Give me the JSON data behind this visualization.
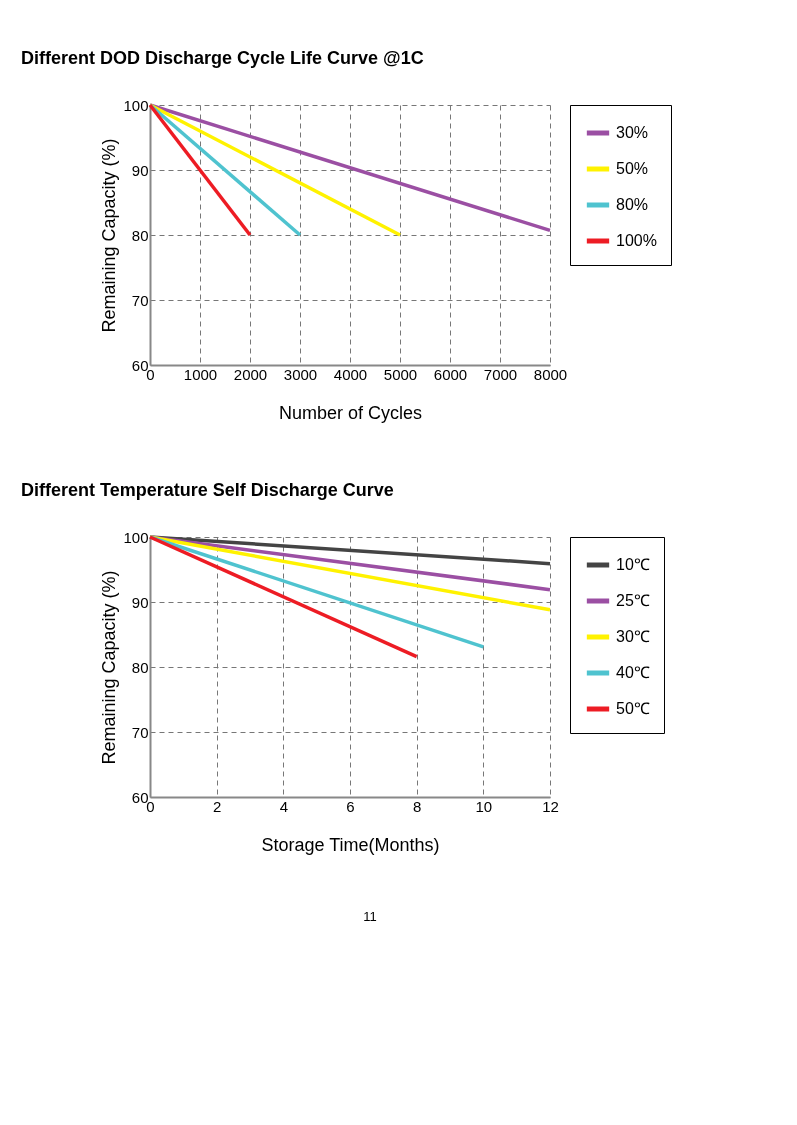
{
  "chart_data": [
    {
      "type": "line",
      "title": "Different DOD Discharge Cycle  Life  Curve @1C",
      "xlabel": "Number of Cycles",
      "ylabel": "Remaining Capacity (%)",
      "xlim": [
        0,
        8000
      ],
      "xticks": [
        0,
        1000,
        2000,
        3000,
        4000,
        5000,
        6000,
        7000,
        8000
      ],
      "ylim": [
        60,
        100
      ],
      "yticks": [
        60,
        70,
        80,
        90,
        100
      ],
      "grid": true,
      "legend": "right",
      "line_style": "solid",
      "marker": "none",
      "series": [
        {
          "name": "30%",
          "color": "#9b4fa3",
          "x": [
            0,
            8000
          ],
          "values": [
            100,
            80.7
          ]
        },
        {
          "name": "50%",
          "color": "#fff200",
          "x": [
            0,
            5000
          ],
          "values": [
            100,
            80
          ]
        },
        {
          "name": "80%",
          "color": "#4fc3cf",
          "x": [
            0,
            3000
          ],
          "values": [
            100,
            80
          ]
        },
        {
          "name": "100%",
          "color": "#ed1c24",
          "x": [
            0,
            2000
          ],
          "values": [
            100,
            80
          ]
        }
      ]
    },
    {
      "type": "line",
      "title": "Different Temperature  Self  Discharge Curve",
      "xlabel": "Storage Time(Months)",
      "ylabel": "Remaining Capacity (%)",
      "xlim": [
        0,
        12
      ],
      "xticks": [
        0,
        2,
        4,
        6,
        8,
        10,
        12
      ],
      "ylim": [
        60,
        100
      ],
      "yticks": [
        60,
        70,
        80,
        90,
        100
      ],
      "grid": true,
      "legend": "right",
      "line_style": "solid",
      "marker": "none",
      "annotations": [
        "11"
      ],
      "series": [
        {
          "name": "10℃",
          "color": "#444444",
          "x": [
            0,
            12
          ],
          "values": [
            100,
            95.9
          ]
        },
        {
          "name": "25℃",
          "color": "#9b4fa3",
          "x": [
            0,
            12
          ],
          "values": [
            100,
            91.9
          ]
        },
        {
          "name": "30℃",
          "color": "#fff200",
          "x": [
            0,
            12
          ],
          "values": [
            100,
            88.8
          ]
        },
        {
          "name": "40℃",
          "color": "#4fc3cf",
          "x": [
            0,
            10
          ],
          "values": [
            100,
            83.1
          ]
        },
        {
          "name": "50℃",
          "color": "#ed1c24",
          "x": [
            0,
            8
          ],
          "values": [
            100,
            81.6
          ]
        }
      ]
    }
  ]
}
